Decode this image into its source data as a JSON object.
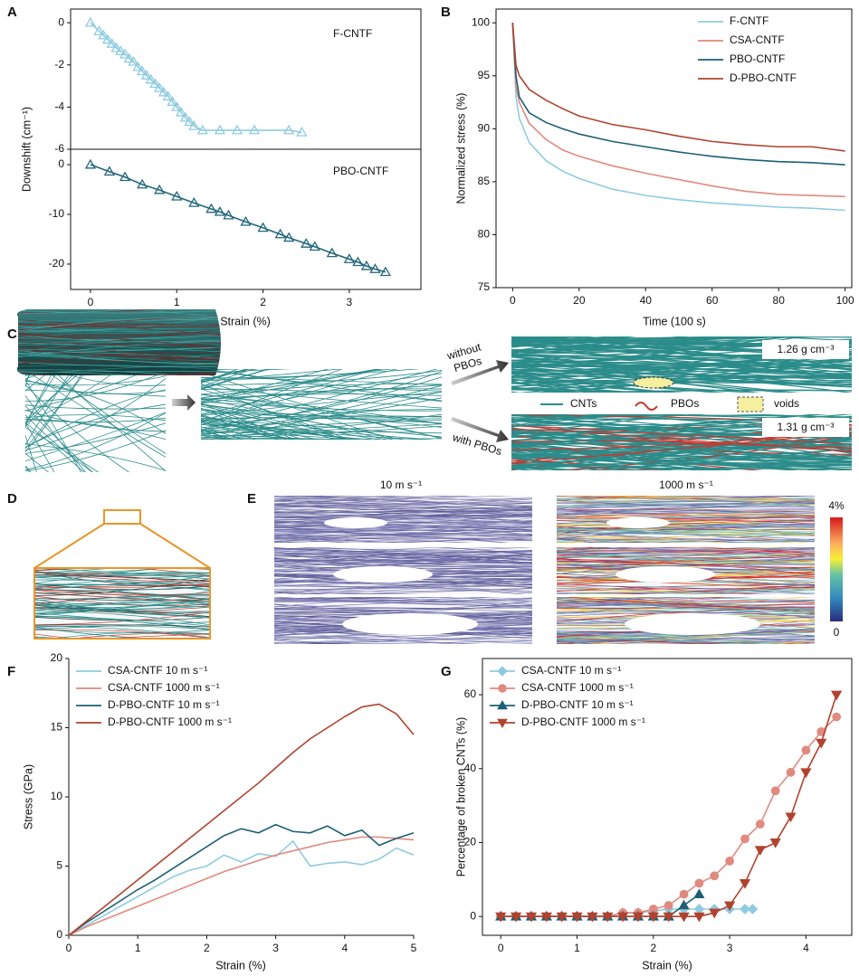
{
  "panel_letters": [
    "A",
    "B",
    "C",
    "D",
    "E",
    "F",
    "G"
  ],
  "chart_data": [
    {
      "type": "line",
      "ylabel": "Downshift (cm⁻¹)",
      "annotation": "F-CNTF",
      "xlim": [
        -0.23,
        3.83
      ],
      "ylim": [
        -6,
        0.65
      ],
      "yticks": [
        -6,
        -4,
        -2,
        0
      ],
      "x": [
        0,
        0.1,
        0.15,
        0.2,
        0.25,
        0.3,
        0.35,
        0.4,
        0.45,
        0.5,
        0.55,
        0.6,
        0.65,
        0.7,
        0.75,
        0.8,
        0.85,
        0.9,
        0.95,
        1.0,
        1.05,
        1.1,
        1.15,
        1.2,
        1.3,
        1.5,
        1.7,
        1.9,
        2.3,
        2.45
      ],
      "series": [
        {
          "color": "#8fcbe0",
          "marker": "triangle-up",
          "marker_filled": false,
          "values": [
            0,
            -0.4,
            -0.6,
            -0.8,
            -1.0,
            -1.2,
            -1.35,
            -1.5,
            -1.7,
            -1.85,
            -2.1,
            -2.3,
            -2.5,
            -2.7,
            -2.9,
            -3.1,
            -3.3,
            -3.5,
            -3.75,
            -4.0,
            -4.25,
            -4.5,
            -4.7,
            -4.9,
            -5.1,
            -5.1,
            -5.1,
            -5.1,
            -5.1,
            -5.2
          ]
        }
      ]
    },
    {
      "type": "line",
      "xlabel": "Strain (%)",
      "annotation": "PBO-CNTF",
      "xlim": [
        -0.23,
        3.83
      ],
      "ylim": [
        -25.1,
        3.1
      ],
      "xticks": [
        0,
        1,
        2,
        3
      ],
      "yticks": [
        -20,
        -10,
        0
      ],
      "x": [
        0,
        0.22,
        0.4,
        0.6,
        0.8,
        1.0,
        1.2,
        1.4,
        1.5,
        1.6,
        1.8,
        2.0,
        2.2,
        2.3,
        2.5,
        2.6,
        2.8,
        3.0,
        3.1,
        3.2,
        3.3,
        3.42
      ],
      "series": [
        {
          "color": "#23667a",
          "marker": "triangle-up",
          "marker_filled": false,
          "values": [
            0,
            -1.4,
            -2.5,
            -4,
            -5.1,
            -6.4,
            -7.7,
            -8.9,
            -9.5,
            -10.2,
            -11.5,
            -12.7,
            -14,
            -14.7,
            -15.9,
            -16.5,
            -17.8,
            -19,
            -19.6,
            -20.4,
            -21,
            -21.6
          ]
        }
      ]
    },
    {
      "type": "line",
      "xlabel": "Time (100 s)",
      "ylabel": "Normalized stress (%)",
      "legend": "upper right",
      "xlim": [
        -5,
        102
      ],
      "ylim": [
        75,
        101.3
      ],
      "xticks": [
        0,
        20,
        40,
        60,
        80,
        100
      ],
      "yticks": [
        75,
        80,
        85,
        90,
        95,
        100
      ],
      "x": [
        0,
        1,
        2,
        5,
        10,
        15,
        20,
        30,
        40,
        50,
        60,
        70,
        80,
        90,
        100
      ],
      "series": [
        {
          "name": "F-CNTF",
          "color": "#8fcbe0",
          "values": [
            100,
            93,
            91,
            88.7,
            87,
            86,
            85.3,
            84.3,
            83.7,
            83.3,
            83,
            82.8,
            82.6,
            82.5,
            82.3
          ]
        },
        {
          "name": "CSA-CNTF",
          "color": "#e08a80",
          "values": [
            100,
            94,
            92.5,
            90.5,
            89,
            88,
            87.4,
            86.5,
            85.8,
            85.2,
            84.6,
            84.1,
            83.8,
            83.7,
            83.6
          ]
        },
        {
          "name": "PBO-CNTF",
          "color": "#1e5f74",
          "values": [
            100,
            95,
            93,
            91.5,
            90.6,
            90,
            89.5,
            88.8,
            88.3,
            87.8,
            87.4,
            87.1,
            86.9,
            86.8,
            86.6
          ]
        },
        {
          "name": "D-PBO-CNTF",
          "color": "#b0432f",
          "values": [
            100,
            96,
            95,
            93.7,
            92.7,
            91.9,
            91.2,
            90.4,
            89.9,
            89.3,
            88.8,
            88.5,
            88.3,
            88.3,
            87.9
          ]
        }
      ]
    },
    {
      "type": "line",
      "xlabel": "Strain (%)",
      "ylabel": "Stress (GPa)",
      "legend": "upper left",
      "xlim": [
        0,
        5
      ],
      "ylim": [
        0,
        20
      ],
      "xticks": [
        0,
        1,
        2,
        3,
        4,
        5
      ],
      "yticks": [
        0,
        5,
        10,
        15,
        20
      ],
      "x": [
        0,
        0.25,
        0.5,
        0.75,
        1,
        1.25,
        1.5,
        1.75,
        2,
        2.25,
        2.5,
        2.75,
        3,
        3.25,
        3.5,
        3.75,
        4,
        4.25,
        4.5,
        4.75,
        5
      ],
      "series": [
        {
          "name": "CSA-CNTF 10 m s⁻¹",
          "color": "#8fcbe0",
          "values": [
            0,
            0.7,
            1.4,
            2.1,
            2.8,
            3.5,
            4.2,
            4.7,
            5.0,
            5.8,
            5.3,
            5.9,
            5.7,
            6.8,
            5.0,
            5.2,
            5.3,
            5.1,
            5.5,
            6.3,
            5.8
          ]
        },
        {
          "name": "CSA-CNTF 1000 m s⁻¹",
          "color": "#e08a80",
          "values": [
            0,
            0.6,
            1.1,
            1.6,
            2.1,
            2.6,
            3.1,
            3.6,
            4.1,
            4.6,
            5.0,
            5.4,
            5.8,
            6.1,
            6.4,
            6.7,
            6.9,
            7.1,
            7.1,
            7.0,
            6.9
          ]
        },
        {
          "name": "D-PBO-CNTF 10 m s⁻¹",
          "color": "#1e5f74",
          "values": [
            0,
            0.9,
            1.7,
            2.5,
            3.3,
            4.0,
            4.8,
            5.6,
            6.4,
            7.2,
            7.7,
            7.4,
            8.0,
            7.5,
            7.4,
            7.9,
            7.2,
            7.6,
            6.5,
            7.0,
            7.4
          ]
        },
        {
          "name": "D-PBO-CNTF 1000 m s⁻¹",
          "color": "#b0432f",
          "values": [
            0,
            1.0,
            2.0,
            3.0,
            4.0,
            5.0,
            6.0,
            7.0,
            8.0,
            9.0,
            10.0,
            11.0,
            12.1,
            13.2,
            14.2,
            15.0,
            15.8,
            16.5,
            16.7,
            16.0,
            14.5
          ]
        }
      ]
    },
    {
      "type": "line",
      "xlabel": "Strain (%)",
      "ylabel": "Percentage of broken CNTs (%)",
      "legend": "upper left",
      "xlim": [
        -0.24,
        4.6
      ],
      "ylim": [
        -5.1,
        69.8
      ],
      "xticks": [
        0,
        1,
        2,
        3,
        4
      ],
      "yticks": [
        0,
        20,
        40,
        60
      ],
      "series": [
        {
          "name": "CSA-CNTF 10 m s⁻¹",
          "color": "#8fcbe0",
          "marker": "diamond",
          "marker_filled": true,
          "x": [
            0,
            0.2,
            0.4,
            0.6,
            0.8,
            1.0,
            1.2,
            1.4,
            1.6,
            1.8,
            2.0,
            2.2,
            2.4,
            2.6,
            2.8,
            3.0,
            3.2,
            3.3
          ],
          "values": [
            0,
            0,
            0,
            0,
            0,
            0,
            0,
            0,
            1,
            1,
            1.5,
            2,
            2,
            2,
            2,
            2,
            2,
            2
          ]
        },
        {
          "name": "CSA-CNTF 1000 m s⁻¹",
          "color": "#e08a80",
          "marker": "circle",
          "marker_filled": true,
          "x": [
            0,
            0.2,
            0.4,
            0.6,
            0.8,
            1.0,
            1.2,
            1.4,
            1.6,
            1.8,
            2.0,
            2.2,
            2.4,
            2.6,
            2.8,
            3.0,
            3.2,
            3.4,
            3.6,
            3.8,
            4.0,
            4.2,
            4.4
          ],
          "values": [
            0,
            0,
            0,
            0,
            0,
            0,
            0,
            0,
            1,
            1,
            2,
            3,
            6,
            9,
            11,
            15,
            21,
            25,
            34,
            39,
            45,
            50,
            54
          ]
        },
        {
          "name": "D-PBO-CNTF 10 m s⁻¹",
          "color": "#1e5f74",
          "marker": "triangle-up",
          "marker_filled": true,
          "x": [
            0,
            0.2,
            0.4,
            0.6,
            0.8,
            1.0,
            1.2,
            1.4,
            1.6,
            1.8,
            2.0,
            2.2,
            2.4,
            2.6
          ],
          "values": [
            0,
            0,
            0,
            0,
            0,
            0,
            0,
            0,
            0,
            0,
            0,
            0,
            3,
            6
          ]
        },
        {
          "name": "D-PBO-CNTF 1000 m s⁻¹",
          "color": "#b0432f",
          "marker": "triangle-down",
          "marker_filled": true,
          "x": [
            0,
            0.2,
            0.4,
            0.6,
            0.8,
            1.0,
            1.2,
            1.4,
            1.6,
            1.8,
            2.0,
            2.2,
            2.4,
            2.6,
            2.8,
            3.0,
            3.2,
            3.4,
            3.6,
            3.8,
            4.0,
            4.2,
            4.4
          ],
          "values": [
            0,
            0,
            0,
            0,
            0,
            0,
            0,
            0,
            0,
            0,
            0,
            0,
            0,
            0,
            1,
            3,
            9,
            18,
            20,
            27,
            39,
            47,
            60
          ]
        }
      ]
    }
  ],
  "diagram": {
    "without_pbos": [
      "without",
      "PBOs"
    ],
    "with_pbos": "with PBOs",
    "density_top": "1.26 g cm⁻³",
    "density_bottom": "1.31 g cm⁻³",
    "legend": [
      "CNTs",
      "PBOs",
      "voids"
    ]
  },
  "simulation": {
    "speeds": [
      "10 m s⁻¹",
      "1000 m s⁻¹"
    ],
    "colorbar_max": "4%",
    "colorbar_min": "0"
  }
}
